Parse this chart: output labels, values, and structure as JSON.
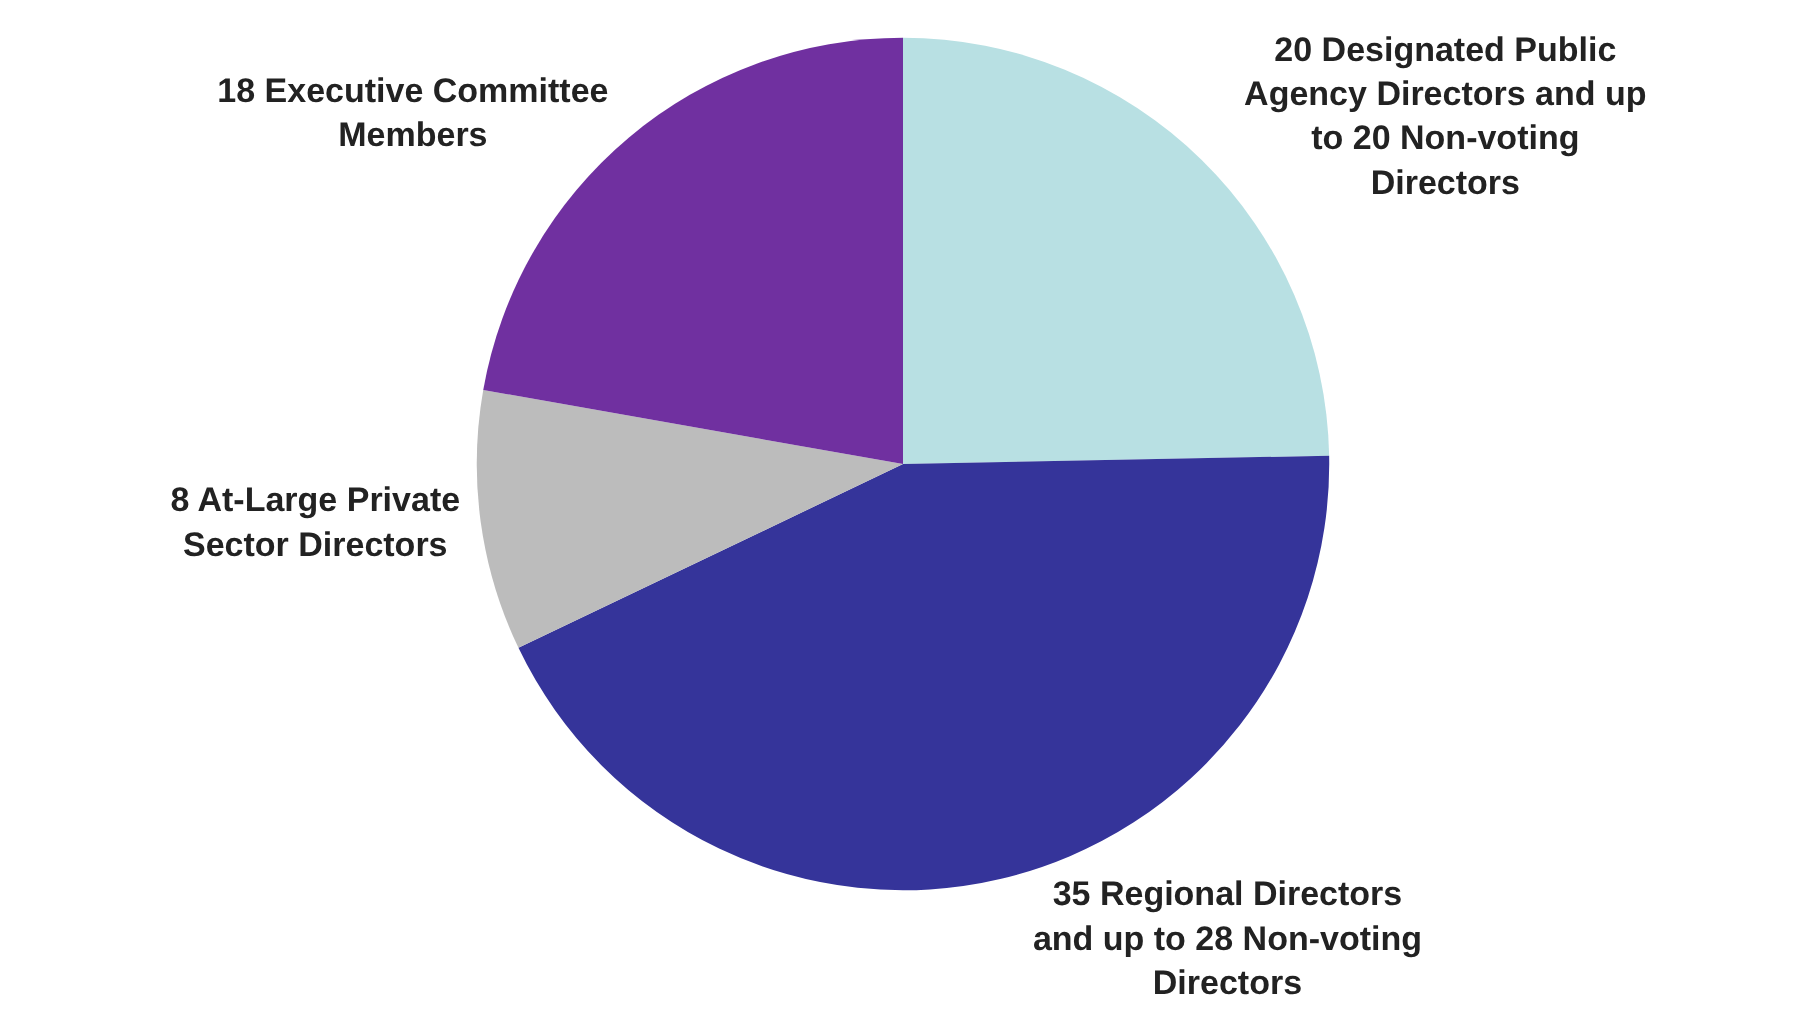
{
  "chart_data": {
    "type": "pie",
    "categories": [
      "20 Designated Public Agency Directors and up to 20 Non-voting Directors",
      "35 Regional Directors and up to 28 Non-voting Directors",
      "8 At-Large Private Sector Directors",
      "18 Executive Committee Members"
    ],
    "values": [
      20,
      35,
      8,
      18
    ],
    "colors": [
      "#b8e0e3",
      "#35349a",
      "#bcbcbc",
      "#7030a0"
    ],
    "legend": false
  }
}
